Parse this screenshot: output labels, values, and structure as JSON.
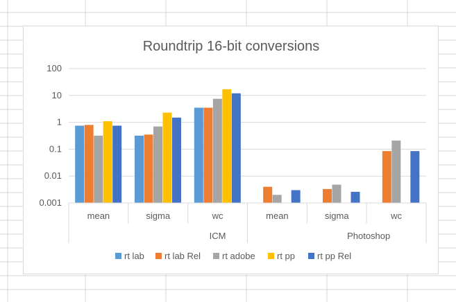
{
  "colors": {
    "rt_lab": "#5b9bd5",
    "rt_lab_rel": "#ed7d31",
    "rt_adobe": "#a5a5a5",
    "rt_pp": "#ffc000",
    "rt_pp_rel": "#4472c4",
    "gridline": "#d9d9d9",
    "axis_text": "#595959",
    "sheet_grid": "#d4d4d4"
  },
  "chart_data": {
    "type": "bar",
    "title": "Roundtrip 16-bit conversions",
    "y_scale": "log",
    "ylim": [
      0.001,
      100
    ],
    "y_ticks": [
      "100",
      "10",
      "1",
      "0.1",
      "0.01",
      "0.001"
    ],
    "grid": true,
    "legend_position": "bottom",
    "categories": [
      "mean",
      "sigma",
      "wc",
      "mean",
      "sigma",
      "wc"
    ],
    "groups": [
      {
        "label": "ICM",
        "categories": [
          "mean",
          "sigma",
          "wc"
        ]
      },
      {
        "label": "Photoshop",
        "categories": [
          "mean",
          "sigma",
          "wc"
        ]
      }
    ],
    "group_labels": [
      "ICM",
      "Photoshop"
    ],
    "series": [
      {
        "name": "rt lab",
        "color_key": "rt_lab",
        "values": [
          0.75,
          0.32,
          3.5,
          null,
          null,
          null
        ]
      },
      {
        "name": "rt lab Rel",
        "color_key": "rt_lab_rel",
        "values": [
          0.8,
          0.35,
          3.5,
          0.004,
          0.0033,
          0.085
        ]
      },
      {
        "name": "rt adobe",
        "color_key": "rt_adobe",
        "values": [
          0.32,
          0.7,
          7.5,
          0.002,
          0.0048,
          0.21
        ]
      },
      {
        "name": "rt pp",
        "color_key": "rt_pp",
        "values": [
          1.1,
          2.3,
          17,
          null,
          null,
          null
        ]
      },
      {
        "name": "rt pp Rel",
        "color_key": "rt_pp_rel",
        "values": [
          0.75,
          1.5,
          12,
          0.003,
          0.0026,
          0.085
        ]
      }
    ]
  }
}
